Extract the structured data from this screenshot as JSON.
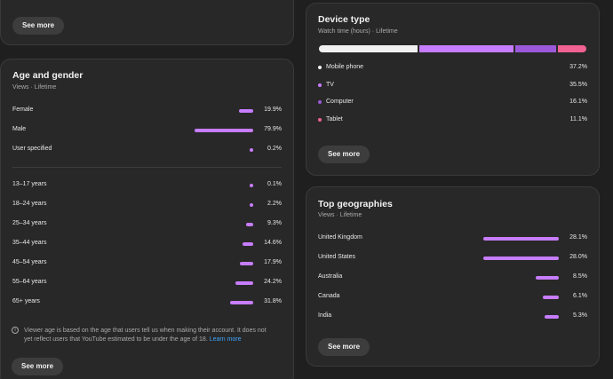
{
  "top_card": {
    "see_more": "See more"
  },
  "age_gender": {
    "title": "Age and gender",
    "subtitle": "Views · Lifetime",
    "gender": [
      {
        "label": "Female",
        "value": "19.9%",
        "pct": 19.9
      },
      {
        "label": "Male",
        "value": "79.9%",
        "pct": 79.9
      },
      {
        "label": "User specified",
        "value": "0.2%",
        "pct": 0.2
      }
    ],
    "ages": [
      {
        "label": "13–17 years",
        "value": "0.1%",
        "pct": 0.1
      },
      {
        "label": "18–24 years",
        "value": "2.2%",
        "pct": 2.2
      },
      {
        "label": "25–34 years",
        "value": "9.3%",
        "pct": 9.3
      },
      {
        "label": "35–44 years",
        "value": "14.6%",
        "pct": 14.6
      },
      {
        "label": "45–54 years",
        "value": "17.9%",
        "pct": 17.9
      },
      {
        "label": "55–64 years",
        "value": "24.2%",
        "pct": 24.2
      },
      {
        "label": "65+ years",
        "value": "31.8%",
        "pct": 31.8
      }
    ],
    "note": "Viewer age is based on the age that users tell us when making their account. It does not yet reflect users that YouTube estimated to be under the age of 18.",
    "learn_more": "Learn more",
    "see_more": "See more"
  },
  "device_type": {
    "title": "Device type",
    "subtitle": "Watch time (hours) · Lifetime",
    "items": [
      {
        "label": "Mobile phone",
        "value": "37.2%",
        "pct": 37.2,
        "color": "#f1f1f1"
      },
      {
        "label": "TV",
        "value": "35.5%",
        "pct": 35.5,
        "color": "#c77dff"
      },
      {
        "label": "Computer",
        "value": "16.1%",
        "pct": 16.1,
        "color": "#9b59d9"
      },
      {
        "label": "Tablet",
        "value": "11.1%",
        "pct": 11.1,
        "color": "#f06292"
      }
    ],
    "see_more": "See more"
  },
  "top_geographies": {
    "title": "Top geographies",
    "subtitle": "Views · Lifetime",
    "items": [
      {
        "label": "United Kingdom",
        "value": "28.1%",
        "pct": 28.1
      },
      {
        "label": "United States",
        "value": "28.0%",
        "pct": 28.0
      },
      {
        "label": "Australia",
        "value": "8.5%",
        "pct": 8.5
      },
      {
        "label": "Canada",
        "value": "6.1%",
        "pct": 6.1
      },
      {
        "label": "India",
        "value": "5.3%",
        "pct": 5.3
      }
    ],
    "see_more": "See more"
  },
  "colors": {
    "accent": "#c77dff",
    "card_bg": "#282828",
    "page_bg": "#1f1f1f",
    "link": "#3ea6ff"
  }
}
